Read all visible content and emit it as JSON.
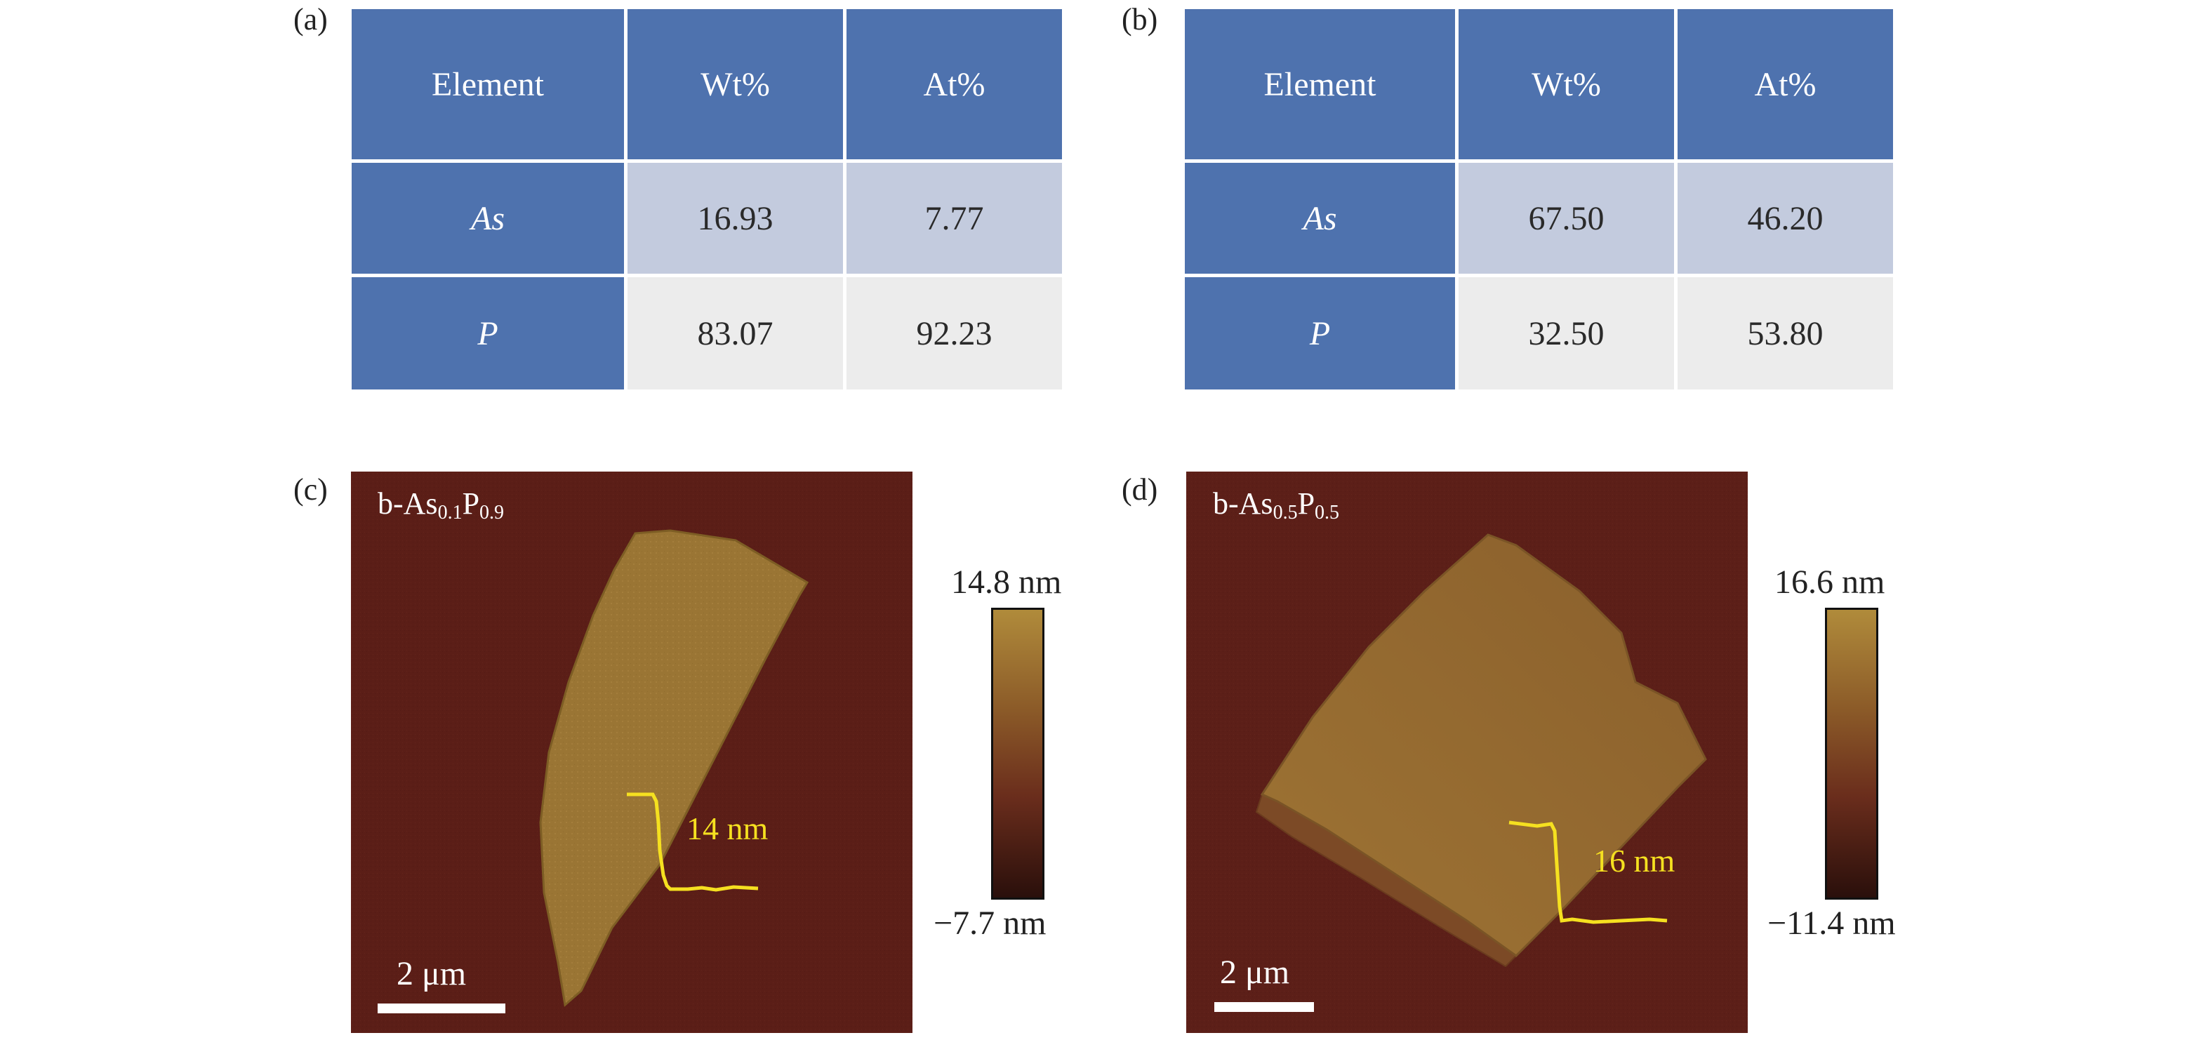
{
  "panels": {
    "a": {
      "label": "(a)",
      "headers": [
        "Element",
        "Wt%",
        "At%"
      ],
      "rows": [
        {
          "element": "As",
          "wt": "16.93",
          "at": "7.77"
        },
        {
          "element": "P",
          "wt": "83.07",
          "at": "92.23"
        }
      ]
    },
    "b": {
      "label": "(b)",
      "headers": [
        "Element",
        "Wt%",
        "At%"
      ],
      "rows": [
        {
          "element": "As",
          "wt": "67.50",
          "at": "46.20"
        },
        {
          "element": "P",
          "wt": "32.50",
          "at": "53.80"
        }
      ]
    },
    "c": {
      "label": "(c)",
      "title_main": "b-As",
      "title_sub1": "0.1",
      "title_mid": "P",
      "title_sub2": "0.9",
      "step_label": "14 nm",
      "scale_label": "2 μm",
      "colorbar_max": "14.8 nm",
      "colorbar_min": "−7.7 nm"
    },
    "d": {
      "label": "(d)",
      "title_main": "b-As",
      "title_sub1": "0.5",
      "title_mid": "P",
      "title_sub2": "0.5",
      "step_label": "16 nm",
      "scale_label": "2 μm",
      "colorbar_max": "16.6 nm",
      "colorbar_min": "−11.4 nm"
    }
  },
  "colors": {
    "header_blue": "#4e72ae",
    "row_light_blue": "#c3cbde",
    "row_light_gray": "#ececec",
    "afm_background": "#5c1f18",
    "flake": "#9a7432",
    "profile_line": "#f5e020"
  }
}
